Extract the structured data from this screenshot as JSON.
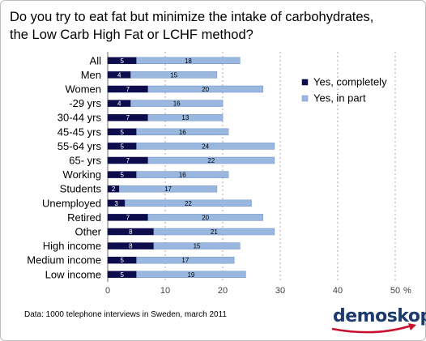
{
  "title": {
    "line1": "Do you try to eat fat but minimize the intake of carbohydrates,",
    "line2": "the Low Carb High Fat or LCHF method?"
  },
  "footer": "Data: 1000 telephone interviews in Sweden, march 2011",
  "brand": "demoskop",
  "chart_data": {
    "type": "bar",
    "orientation": "horizontal",
    "stacked": true,
    "categories": [
      "All",
      "Men",
      "Women",
      "-29 yrs",
      "30-44 yrs",
      "45-45 yrs",
      "55-64 yrs",
      "65- yrs",
      "Working",
      "Students",
      "Unemployed",
      "Retired",
      "Other",
      "High income",
      "Medium income",
      "Low income"
    ],
    "series": [
      {
        "name": "Yes, completely",
        "color": "#0d0d4d",
        "values": [
          5,
          4,
          7,
          4,
          7,
          5,
          5,
          7,
          5,
          2,
          3,
          7,
          8,
          8,
          5,
          5
        ]
      },
      {
        "name": "Yes, in part",
        "color": "#9ab7e0",
        "values": [
          18,
          15,
          20,
          16,
          13,
          16,
          24,
          22,
          16,
          17,
          22,
          20,
          21,
          15,
          17,
          19
        ]
      }
    ],
    "xlim": [
      0,
      50
    ],
    "xticks": [
      0,
      10,
      20,
      30,
      40,
      50
    ],
    "x_unit": "%",
    "grid": "vertical-dashed",
    "legend": "right"
  }
}
